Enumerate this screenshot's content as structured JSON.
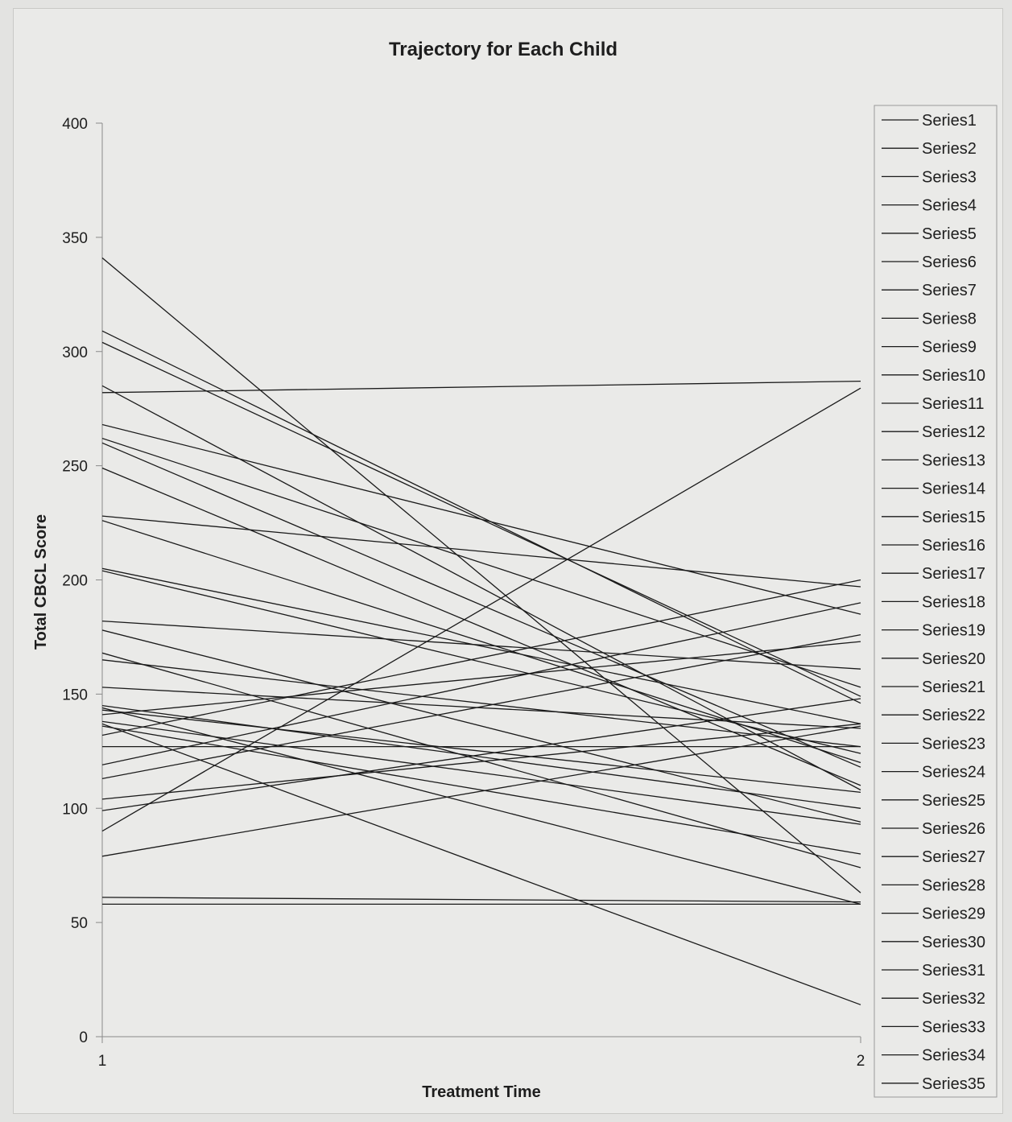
{
  "chart_data": {
    "type": "line",
    "title": "Trajectory for Each Child",
    "xlabel": "Treatment Time",
    "ylabel": "Total CBCL Score",
    "x": [
      1,
      2
    ],
    "x_ticks": [
      "1",
      "2"
    ],
    "ylim": [
      0,
      400
    ],
    "y_ticks": [
      "0",
      "50",
      "100",
      "150",
      "200",
      "250",
      "300",
      "350",
      "400"
    ],
    "grid": false,
    "legend_position": "right",
    "line_color": "#1a1a1a",
    "series": [
      {
        "name": "Series1",
        "values": [
          341,
          63
        ]
      },
      {
        "name": "Series2",
        "values": [
          309,
          146
        ]
      },
      {
        "name": "Series3",
        "values": [
          304,
          149
        ]
      },
      {
        "name": "Series4",
        "values": [
          282,
          287
        ]
      },
      {
        "name": "Series5",
        "values": [
          285,
          108
        ]
      },
      {
        "name": "Series6",
        "values": [
          268,
          185
        ]
      },
      {
        "name": "Series7",
        "values": [
          262,
          153
        ]
      },
      {
        "name": "Series8",
        "values": [
          260,
          118
        ]
      },
      {
        "name": "Series9",
        "values": [
          249,
          110
        ]
      },
      {
        "name": "Series10",
        "values": [
          228,
          197
        ]
      },
      {
        "name": "Series11",
        "values": [
          226,
          120
        ]
      },
      {
        "name": "Series12",
        "values": [
          205,
          137
        ]
      },
      {
        "name": "Series13",
        "values": [
          204,
          124
        ]
      },
      {
        "name": "Series14",
        "values": [
          182,
          161
        ]
      },
      {
        "name": "Series15",
        "values": [
          178,
          94
        ]
      },
      {
        "name": "Series16",
        "values": [
          168,
          74
        ]
      },
      {
        "name": "Series17",
        "values": [
          165,
          127
        ]
      },
      {
        "name": "Series18",
        "values": [
          153,
          135
        ]
      },
      {
        "name": "Series19",
        "values": [
          145,
          100
        ]
      },
      {
        "name": "Series20",
        "values": [
          143,
          107
        ]
      },
      {
        "name": "Series21",
        "values": [
          141,
          173
        ]
      },
      {
        "name": "Series22",
        "values": [
          144,
          58
        ]
      },
      {
        "name": "Series23",
        "values": [
          137,
          14
        ]
      },
      {
        "name": "Series24",
        "values": [
          132,
          200
        ]
      },
      {
        "name": "Series25",
        "values": [
          127,
          127
        ]
      },
      {
        "name": "Series26",
        "values": [
          119,
          190
        ]
      },
      {
        "name": "Series27",
        "values": [
          113,
          176
        ]
      },
      {
        "name": "Series28",
        "values": [
          104,
          137
        ]
      },
      {
        "name": "Series29",
        "values": [
          99,
          148
        ]
      },
      {
        "name": "Series30",
        "values": [
          90,
          284
        ]
      },
      {
        "name": "Series31",
        "values": [
          79,
          136
        ]
      },
      {
        "name": "Series32",
        "values": [
          61,
          59
        ]
      },
      {
        "name": "Series33",
        "values": [
          58,
          58
        ]
      },
      {
        "name": "Series34",
        "values": [
          136,
          80
        ]
      },
      {
        "name": "Series35",
        "values": [
          138,
          93
        ]
      }
    ]
  }
}
